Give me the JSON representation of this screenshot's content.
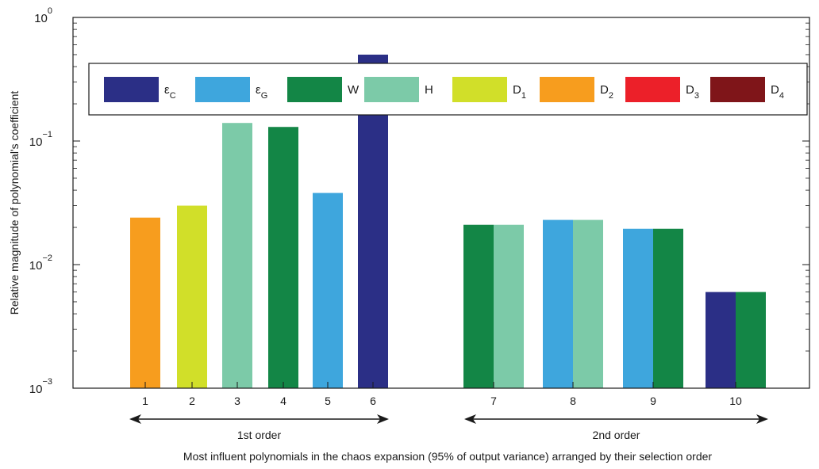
{
  "chart_data": {
    "type": "bar",
    "ylabel": "Relative magnitude of polynomial's coefficient",
    "xlabel": "Most influent polynomials in the chaos expansion (95% of output variance) arranged by their selection order",
    "yscale": "log",
    "ylim": [
      0.001,
      1
    ],
    "yticks": [
      {
        "base": "10",
        "exp": "0",
        "value": 1
      },
      {
        "base": "10",
        "exp": "−1",
        "value": 0.1
      },
      {
        "base": "10",
        "exp": "−2",
        "value": 0.01
      },
      {
        "base": "10",
        "exp": "−3",
        "value": 0.001
      }
    ],
    "grid": false,
    "legend_position": "top",
    "legend": [
      {
        "key": "eC",
        "symbol": "ε",
        "sub": "C",
        "color": "#2b2f86"
      },
      {
        "key": "eG",
        "symbol": "ε",
        "sub": "G",
        "color": "#3ea6dd"
      },
      {
        "key": "W",
        "symbol": "W",
        "sub": "",
        "color": "#138646"
      },
      {
        "key": "H",
        "symbol": "H",
        "sub": "",
        "color": "#7ccaa8"
      },
      {
        "key": "D1",
        "symbol": "D",
        "sub": "1",
        "color": "#d1df29"
      },
      {
        "key": "D2",
        "symbol": "D",
        "sub": "2",
        "color": "#f79d1e"
      },
      {
        "key": "D3",
        "symbol": "D",
        "sub": "3",
        "color": "#ec2029"
      },
      {
        "key": "D4",
        "symbol": "D",
        "sub": "4",
        "color": "#7f1519"
      }
    ],
    "polynomials": [
      {
        "label": "1",
        "value": 0.024,
        "bars": [
          "D2"
        ]
      },
      {
        "label": "2",
        "value": 0.03,
        "bars": [
          "D1"
        ]
      },
      {
        "label": "3",
        "value": 0.14,
        "bars": [
          "H"
        ]
      },
      {
        "label": "4",
        "value": 0.13,
        "bars": [
          "W"
        ]
      },
      {
        "label": "5",
        "value": 0.038,
        "bars": [
          "eG"
        ]
      },
      {
        "label": "6",
        "value": 0.5,
        "bars": [
          "eC"
        ]
      },
      {
        "label": "7",
        "value": 0.021,
        "bars": [
          "W",
          "H"
        ]
      },
      {
        "label": "8",
        "value": 0.023,
        "bars": [
          "eG",
          "H"
        ]
      },
      {
        "label": "9",
        "value": 0.0195,
        "bars": [
          "eG",
          "W"
        ]
      },
      {
        "label": "10",
        "value": 0.006,
        "bars": [
          "eC",
          "W"
        ]
      }
    ],
    "groups": [
      {
        "label": "1st order",
        "from": 0,
        "to": 5
      },
      {
        "label": "2nd order",
        "from": 6,
        "to": 9
      }
    ]
  }
}
